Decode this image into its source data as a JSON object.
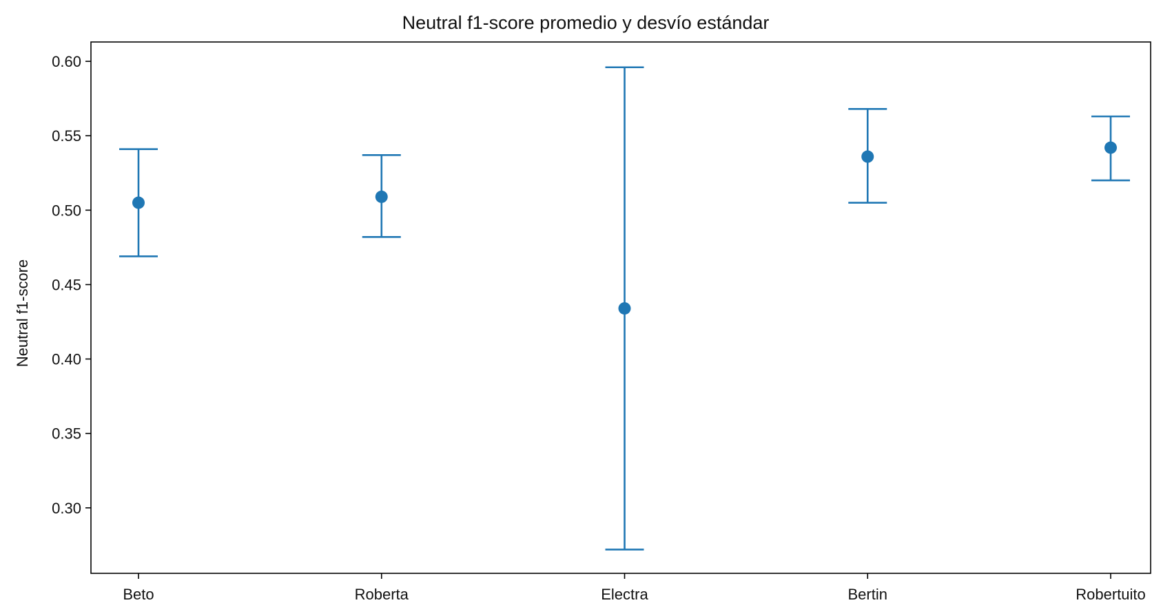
{
  "chart_data": {
    "type": "scatter",
    "title": "Neutral f1-score promedio y desvío estándar",
    "xlabel": "",
    "ylabel": "Neutral f1-score",
    "categories": [
      "Beto",
      "Roberta",
      "Electra",
      "Bertin",
      "Robertuito"
    ],
    "series": [
      {
        "values": [
          0.505,
          0.509,
          0.434,
          0.536,
          0.542
        ],
        "error_low": [
          0.469,
          0.482,
          0.272,
          0.505,
          0.52
        ],
        "error_high": [
          0.541,
          0.537,
          0.596,
          0.568,
          0.563
        ]
      }
    ],
    "ylim": [
      0.256,
      0.613
    ],
    "yticks": [
      0.3,
      0.35,
      0.4,
      0.45,
      0.5,
      0.55,
      0.6
    ],
    "ytick_labels": [
      "0.30",
      "0.35",
      "0.40",
      "0.45",
      "0.50",
      "0.55",
      "0.60"
    ],
    "grid": false,
    "color": "#1f77b4"
  }
}
